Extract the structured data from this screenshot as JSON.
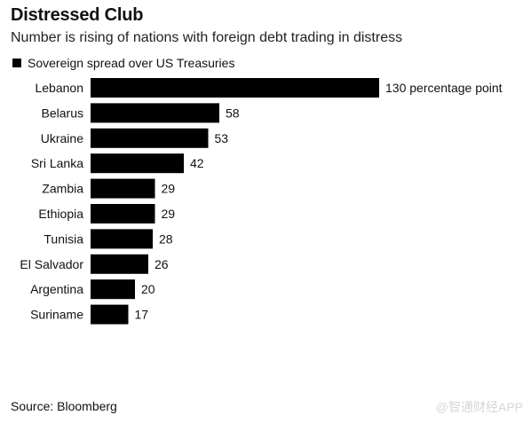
{
  "title": "Distressed Club",
  "subtitle": "Number is rising of nations with foreign debt trading in distress",
  "source": "Source: Bloomberg",
  "watermark": "@智通财经APP",
  "colors": {
    "bar": "#000000",
    "text": "#111111",
    "watermark": "#d6d6d6"
  },
  "chart_data": {
    "type": "bar",
    "orientation": "horizontal",
    "legend": {
      "entries": [
        "Sovereign spread over US Treasuries"
      ],
      "placement": "top-left"
    },
    "series": [
      {
        "name": "Sovereign spread over US Treasuries",
        "values": [
          130,
          58,
          53,
          42,
          29,
          29,
          28,
          26,
          20,
          17
        ]
      }
    ],
    "categories": [
      "Lebanon",
      "Belarus",
      "Ukraine",
      "Sri Lanka",
      "Zambia",
      "Ethiopia",
      "Tunisia",
      "El Salvador",
      "Argentina",
      "Suriname"
    ],
    "value_labels": [
      "130 percentage point",
      "58",
      "53",
      "42",
      "29",
      "29",
      "28",
      "26",
      "20",
      "17"
    ],
    "xlim": [
      0,
      130
    ],
    "grid": false
  }
}
